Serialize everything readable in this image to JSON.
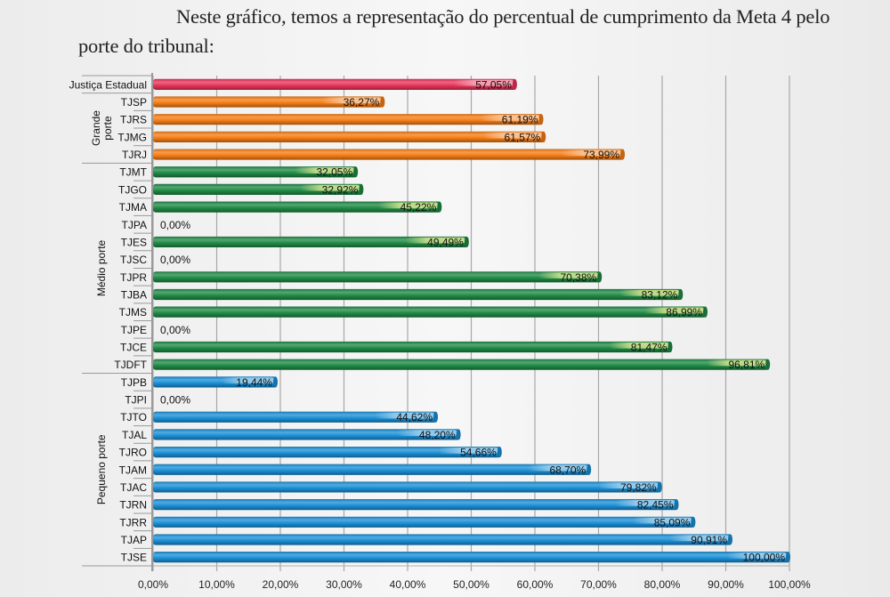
{
  "intro_text": "Neste gráfico, temos a representação do percentual de cumprimento da Meta 4 pelo porte do tribunal:",
  "chart_data": {
    "type": "bar",
    "orientation": "horizontal",
    "title": "",
    "xlabel": "",
    "ylabel": "",
    "xlim": [
      0,
      100
    ],
    "x_ticks": [
      "0,00%",
      "10,00%",
      "20,00%",
      "30,00%",
      "40,00%",
      "50,00%",
      "60,00%",
      "70,00%",
      "80,00%",
      "90,00%",
      "100,00%"
    ],
    "grid": true,
    "colors": {
      "justica_estadual": "#e8345a",
      "grande_porte": "#f57c14",
      "medio_porte": "#1f8a45",
      "pequeno_porte": "#1a8fd6"
    },
    "groups": [
      {
        "name": "",
        "key": "justica_estadual",
        "categories": [
          "Justiça Estadual"
        ],
        "values": [
          57.05
        ],
        "labels": [
          "57,05%"
        ]
      },
      {
        "name": "Grande porte",
        "key": "grande_porte",
        "categories": [
          "TJSP",
          "TJRS",
          "TJMG",
          "TJRJ"
        ],
        "values": [
          36.27,
          61.19,
          61.57,
          73.99
        ],
        "labels": [
          "36,27%",
          "61,19%",
          "61,57%",
          "73,99%"
        ]
      },
      {
        "name": "Médio porte",
        "key": "medio_porte",
        "categories": [
          "TJMT",
          "TJGO",
          "TJMA",
          "TJPA",
          "TJES",
          "TJSC",
          "TJPR",
          "TJBA",
          "TJMS",
          "TJPE",
          "TJCE",
          "TJDFT"
        ],
        "values": [
          32.05,
          32.92,
          45.22,
          0.0,
          49.49,
          0.0,
          70.38,
          83.12,
          86.99,
          0.0,
          81.47,
          96.81
        ],
        "labels": [
          "32,05%",
          "32,92%",
          "45,22%",
          "0,00%",
          "49,49%",
          "0,00%",
          "70,38%",
          "83,12%",
          "86,99%",
          "0,00%",
          "81,47%",
          "96,81%"
        ]
      },
      {
        "name": "Pequeno porte",
        "key": "pequeno_porte",
        "categories": [
          "TJPB",
          "TJPI",
          "TJTO",
          "TJAL",
          "TJRO",
          "TJAM",
          "TJAC",
          "TJRN",
          "TJRR",
          "TJAP",
          "TJSE"
        ],
        "values": [
          19.44,
          0.0,
          44.62,
          48.2,
          54.66,
          68.7,
          79.82,
          82.45,
          85.09,
          90.91,
          100.0
        ],
        "labels": [
          "19,44%",
          "0,00%",
          "44,62%",
          "48,20%",
          "54,66%",
          "68,70%",
          "79,82%",
          "82,45%",
          "85,09%",
          "90,91%",
          "100,00%"
        ]
      }
    ]
  }
}
